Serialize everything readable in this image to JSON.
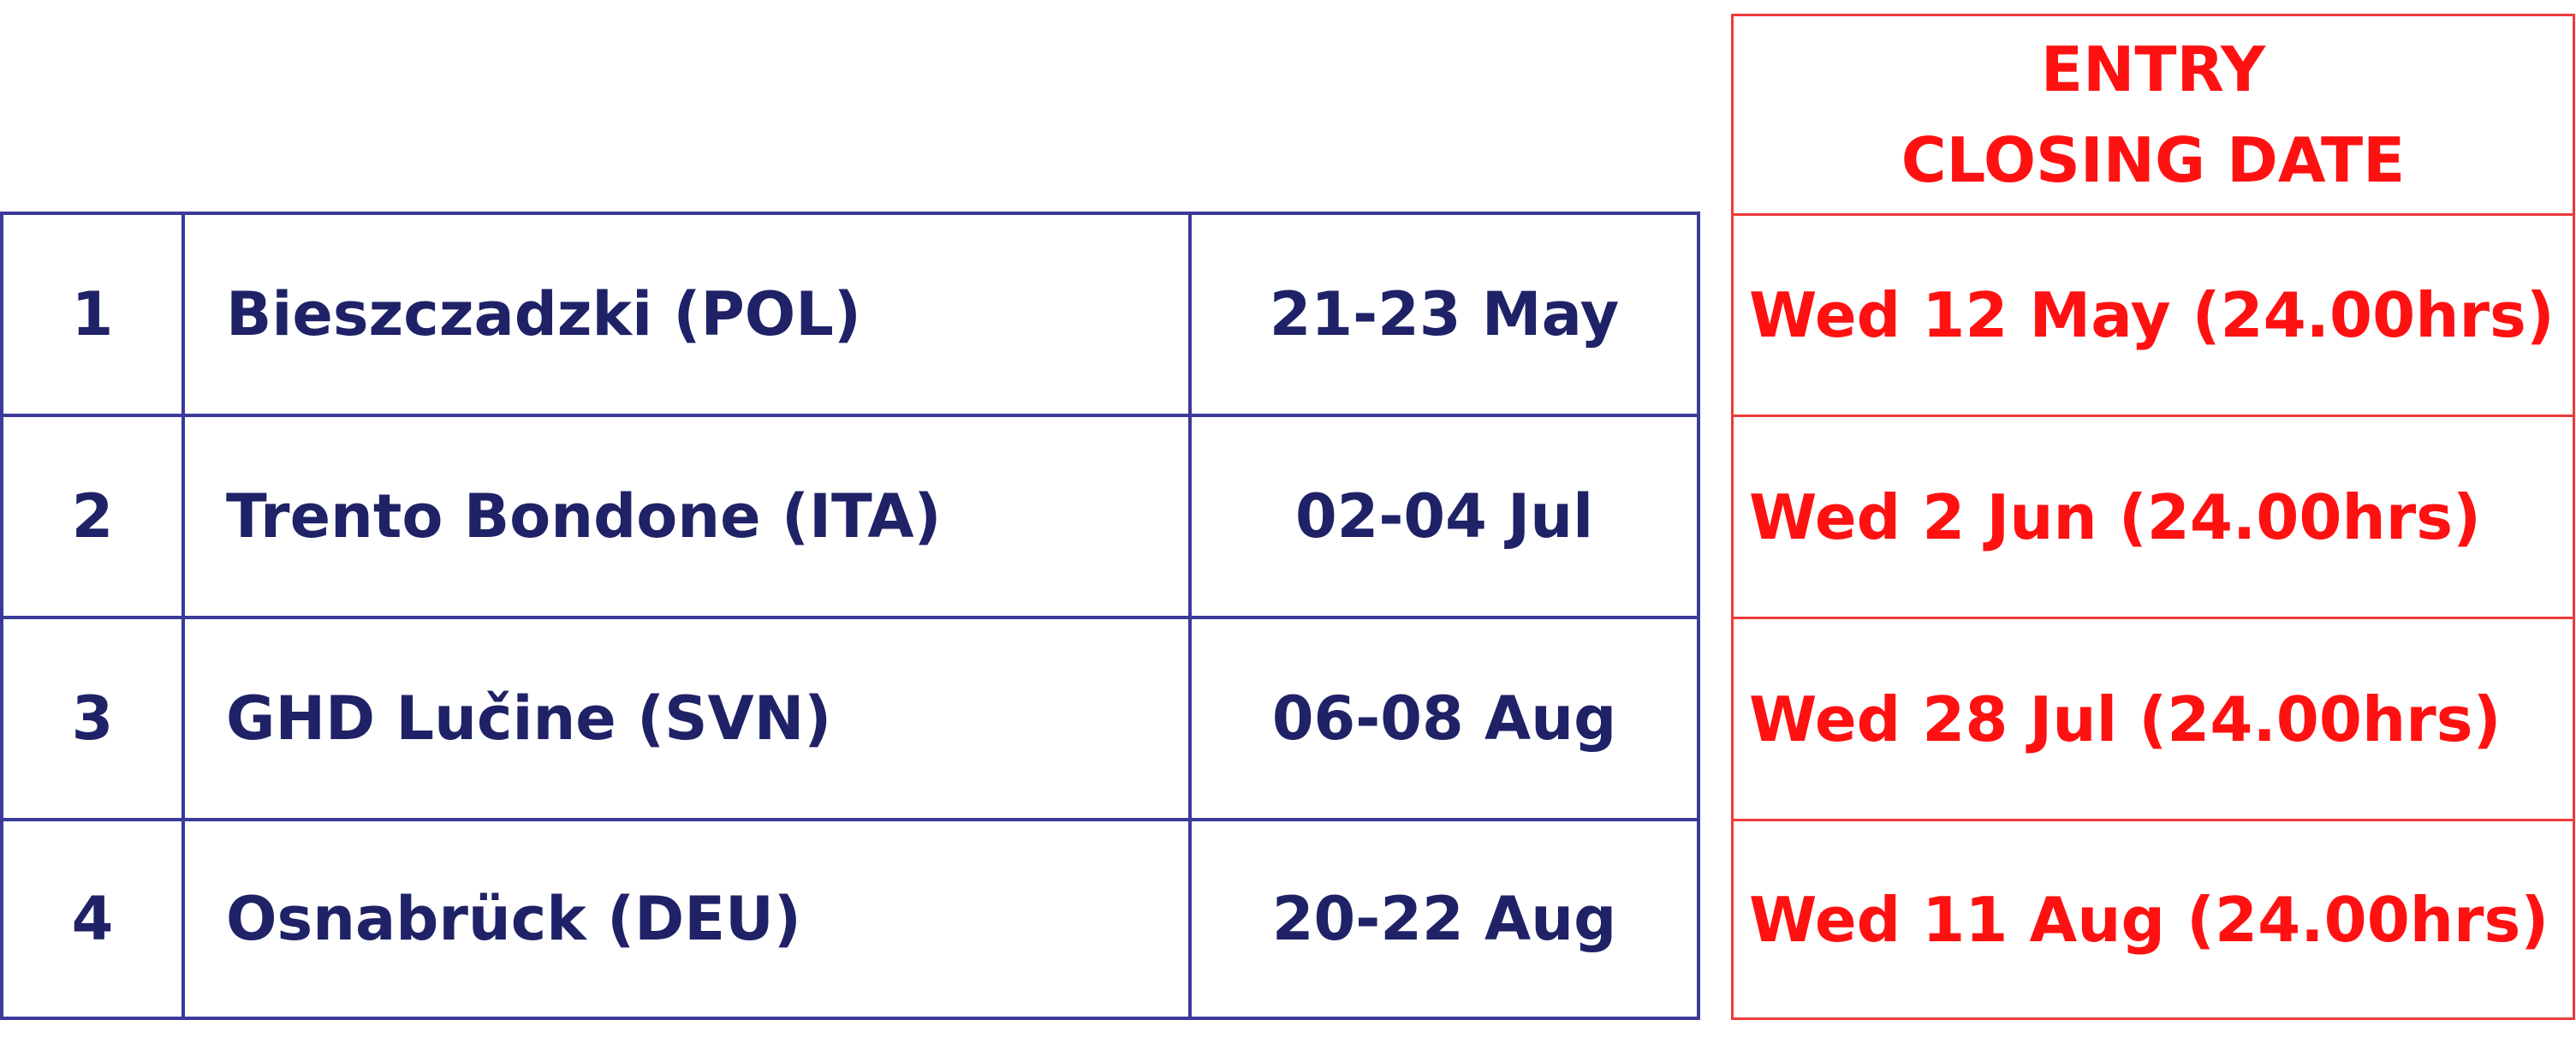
{
  "header": {
    "line1": "ENTRY",
    "line2": "CLOSING DATE"
  },
  "rows": [
    {
      "number": "1",
      "venue": "Bieszczadzki (POL)",
      "dates": "21-23 May",
      "closing": "Wed 12 May (24.00hrs)"
    },
    {
      "number": "2",
      "venue": "Trento Bondone (ITA)",
      "dates": "02-04 Jul",
      "closing": "Wed 2 Jun (24.00hrs)"
    },
    {
      "number": "3",
      "venue": "GHD Lučine (SVN)",
      "dates": "06-08 Aug",
      "closing": "Wed 28 Jul (24.00hrs)"
    },
    {
      "number": "4",
      "venue": "Osnabrück (DEU)",
      "dates": "20-22 Aug",
      "closing": "Wed 11 Aug (24.00hrs)"
    }
  ],
  "colors": {
    "table_border": "#3a3a9a",
    "table_text": "#1f2266",
    "closing_border": "#ee3a3a",
    "closing_text": "#ff1111"
  }
}
